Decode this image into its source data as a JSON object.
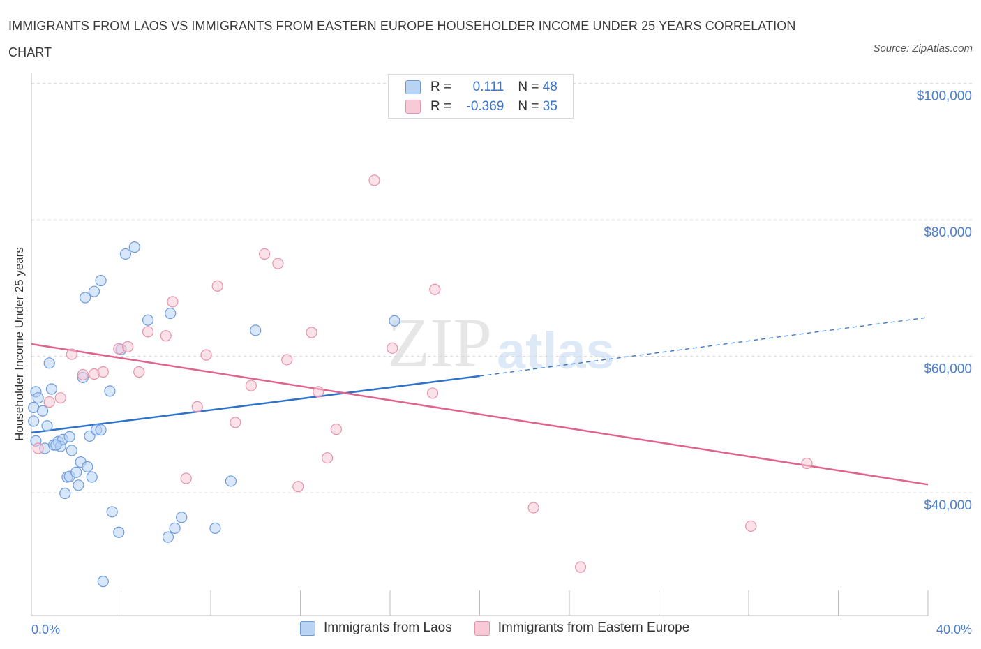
{
  "header": {
    "title": "IMMIGRANTS FROM LAOS VS IMMIGRANTS FROM EASTERN EUROPE HOUSEHOLDER INCOME UNDER 25 YEARS CORRELATION CHART",
    "source": "Source: ZipAtlas.com"
  },
  "watermark": {
    "zip": "ZIP",
    "atlas": "atlas"
  },
  "legend": {
    "series": [
      {
        "r_label": "R = ",
        "r_value": "0.111",
        "n_label": "N = ",
        "n_value": "48"
      },
      {
        "r_label": "R = ",
        "r_value": "-0.369",
        "n_label": "N = ",
        "n_value": "35"
      }
    ]
  },
  "colors": {
    "blue_fill": "#b9d3f5",
    "blue_stroke": "#6a9be0",
    "blue_line": "#2e72c9",
    "pink_fill": "#f8c9d6",
    "pink_stroke": "#e891ab",
    "pink_line": "#e0638f",
    "grid": "#dcdcdc",
    "axis_text": "#4a7fd0"
  },
  "chart_data": {
    "type": "scatter",
    "title": "IMMIGRANTS FROM LAOS VS IMMIGRANTS FROM EASTERN EUROPE HOUSEHOLDER INCOME UNDER 25 YEARS CORRELATION CHART",
    "xlabel": "",
    "ylabel": "Householder Income Under 25 years",
    "xlim": [
      0,
      40
    ],
    "ylim": [
      22000,
      102000
    ],
    "x_tick_labels": [
      {
        "value": 0,
        "label": "0.0%"
      },
      {
        "value": 40,
        "label": "40.0%"
      }
    ],
    "y_ticks": [
      {
        "value": 100000,
        "label": "$100,000"
      },
      {
        "value": 80000,
        "label": "$80,000"
      },
      {
        "value": 60000,
        "label": "$60,000"
      },
      {
        "value": 40000,
        "label": "$40,000"
      }
    ],
    "series": [
      {
        "name": "Immigrants from Laos",
        "color": "blue",
        "points": [
          {
            "x": 0.1,
            "y": 50500
          },
          {
            "x": 0.1,
            "y": 52500
          },
          {
            "x": 0.2,
            "y": 54800
          },
          {
            "x": 0.3,
            "y": 53900
          },
          {
            "x": 0.5,
            "y": 52000
          },
          {
            "x": 0.6,
            "y": 46500
          },
          {
            "x": 0.7,
            "y": 49800
          },
          {
            "x": 0.8,
            "y": 59000
          },
          {
            "x": 0.9,
            "y": 55200
          },
          {
            "x": 1.0,
            "y": 47000
          },
          {
            "x": 1.2,
            "y": 47500
          },
          {
            "x": 1.3,
            "y": 46800
          },
          {
            "x": 1.4,
            "y": 47800
          },
          {
            "x": 1.5,
            "y": 39900
          },
          {
            "x": 1.6,
            "y": 42300
          },
          {
            "x": 1.7,
            "y": 42400
          },
          {
            "x": 1.7,
            "y": 48200
          },
          {
            "x": 1.8,
            "y": 46200
          },
          {
            "x": 2.0,
            "y": 43000
          },
          {
            "x": 2.1,
            "y": 41100
          },
          {
            "x": 2.2,
            "y": 44500
          },
          {
            "x": 2.3,
            "y": 56900
          },
          {
            "x": 2.4,
            "y": 68600
          },
          {
            "x": 2.5,
            "y": 43800
          },
          {
            "x": 2.6,
            "y": 48300
          },
          {
            "x": 2.7,
            "y": 42300
          },
          {
            "x": 2.8,
            "y": 69500
          },
          {
            "x": 2.9,
            "y": 49200
          },
          {
            "x": 3.1,
            "y": 49200
          },
          {
            "x": 3.1,
            "y": 71100
          },
          {
            "x": 3.2,
            "y": 27000
          },
          {
            "x": 3.5,
            "y": 54900
          },
          {
            "x": 3.6,
            "y": 37200
          },
          {
            "x": 3.9,
            "y": 34200
          },
          {
            "x": 4.0,
            "y": 61000
          },
          {
            "x": 4.2,
            "y": 75000
          },
          {
            "x": 4.6,
            "y": 76000
          },
          {
            "x": 5.2,
            "y": 65300
          },
          {
            "x": 6.1,
            "y": 33500
          },
          {
            "x": 6.2,
            "y": 66300
          },
          {
            "x": 6.4,
            "y": 34800
          },
          {
            "x": 6.7,
            "y": 36400
          },
          {
            "x": 8.2,
            "y": 34800
          },
          {
            "x": 8.9,
            "y": 41700
          },
          {
            "x": 10.0,
            "y": 63800
          },
          {
            "x": 16.2,
            "y": 65200
          },
          {
            "x": 0.2,
            "y": 47600
          },
          {
            "x": 1.1,
            "y": 47000
          }
        ]
      },
      {
        "name": "Immigrants from Eastern Europe",
        "color": "pink",
        "points": [
          {
            "x": 0.3,
            "y": 46500
          },
          {
            "x": 0.8,
            "y": 53300
          },
          {
            "x": 1.3,
            "y": 53900
          },
          {
            "x": 1.8,
            "y": 60300
          },
          {
            "x": 2.3,
            "y": 57300
          },
          {
            "x": 2.8,
            "y": 57400
          },
          {
            "x": 3.2,
            "y": 57700
          },
          {
            "x": 3.9,
            "y": 61100
          },
          {
            "x": 4.3,
            "y": 61400
          },
          {
            "x": 4.8,
            "y": 57700
          },
          {
            "x": 5.2,
            "y": 63600
          },
          {
            "x": 6.0,
            "y": 63000
          },
          {
            "x": 6.3,
            "y": 68000
          },
          {
            "x": 6.9,
            "y": 42100
          },
          {
            "x": 7.4,
            "y": 52600
          },
          {
            "x": 7.8,
            "y": 60200
          },
          {
            "x": 8.3,
            "y": 70300
          },
          {
            "x": 9.1,
            "y": 50300
          },
          {
            "x": 9.8,
            "y": 55700
          },
          {
            "x": 10.4,
            "y": 75000
          },
          {
            "x": 11.0,
            "y": 73600
          },
          {
            "x": 11.4,
            "y": 59500
          },
          {
            "x": 11.9,
            "y": 40900
          },
          {
            "x": 12.5,
            "y": 63500
          },
          {
            "x": 12.8,
            "y": 54800
          },
          {
            "x": 13.2,
            "y": 45100
          },
          {
            "x": 13.6,
            "y": 49300
          },
          {
            "x": 15.3,
            "y": 85800
          },
          {
            "x": 16.1,
            "y": 61200
          },
          {
            "x": 18.0,
            "y": 69800
          },
          {
            "x": 17.9,
            "y": 54600
          },
          {
            "x": 22.4,
            "y": 37800
          },
          {
            "x": 24.5,
            "y": 29100
          },
          {
            "x": 32.1,
            "y": 35100
          },
          {
            "x": 34.6,
            "y": 44300
          }
        ]
      }
    ],
    "trend_lines": [
      {
        "series": "Immigrants from Laos",
        "x0": 0.0,
        "y0": 48800,
        "x1": 20.0,
        "y1": 57100,
        "x_dashed_end": 40.0,
        "y_dashed_end": 65700
      },
      {
        "series": "Immigrants from Eastern Europe",
        "x0": 0.0,
        "y0": 61800,
        "x1": 40.0,
        "y1": 41200
      }
    ]
  }
}
